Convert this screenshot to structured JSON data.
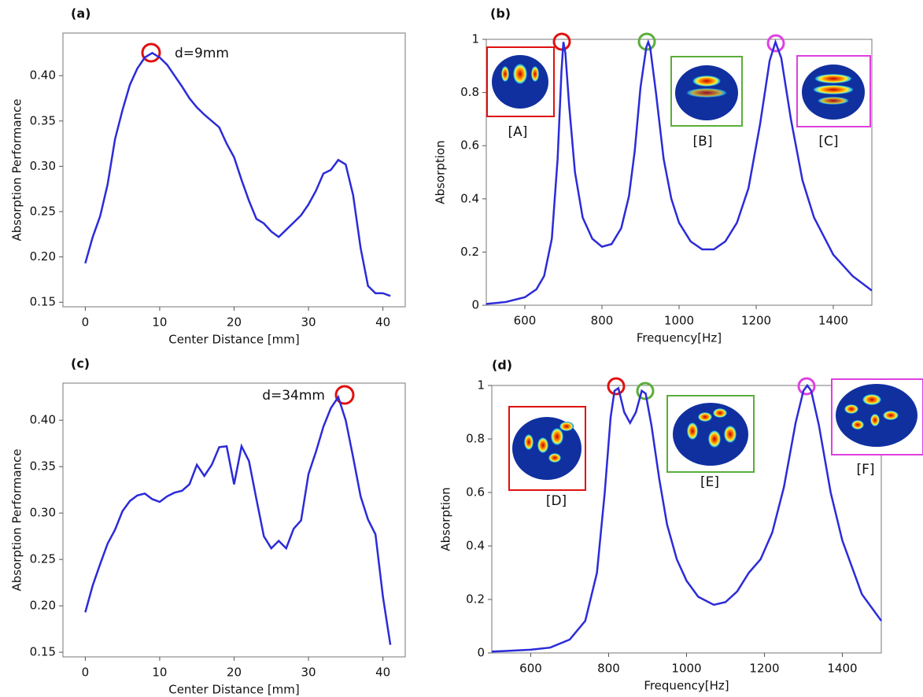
{
  "chart_data": [
    {
      "type": "line",
      "label": "(a)",
      "xlabel": "Center Distance [mm]",
      "ylabel": "Absorption Performance",
      "color": "#2b2bd9",
      "x": [
        0,
        1,
        2,
        3,
        4,
        5,
        6,
        7,
        8,
        9,
        10,
        11,
        12,
        13,
        14,
        15,
        16,
        17,
        18,
        19,
        20,
        21,
        22,
        23,
        24,
        25,
        26,
        27,
        28,
        29,
        30,
        31,
        32,
        33,
        34,
        35,
        36,
        37,
        38,
        39,
        40,
        41
      ],
      "values": [
        0.193,
        0.222,
        0.245,
        0.28,
        0.33,
        0.362,
        0.39,
        0.408,
        0.42,
        0.425,
        0.42,
        0.412,
        0.4,
        0.388,
        0.375,
        0.365,
        0.357,
        0.35,
        0.343,
        0.325,
        0.31,
        0.285,
        0.262,
        0.242,
        0.237,
        0.228,
        0.222,
        0.23,
        0.238,
        0.246,
        0.258,
        0.273,
        0.292,
        0.296,
        0.307,
        0.302,
        0.268,
        0.21,
        0.168,
        0.16,
        0.16,
        0.157
      ],
      "xlim": [
        -3,
        43
      ],
      "ylim": [
        0.145,
        0.447
      ],
      "xticks": [
        0,
        10,
        20,
        30,
        40
      ],
      "yticks": [
        0.15,
        {
          "value": 0.2,
          "label": "0.20"
        },
        0.25,
        {
          "value": 0.3,
          "label": "0.30"
        },
        0.35,
        {
          "value": 0.4,
          "label": "0.40"
        }
      ],
      "annotations": [
        "d=9mm"
      ]
    },
    {
      "type": "line",
      "label": "(b)",
      "xlabel": "Frequency[Hz]",
      "ylabel": "Absorption",
      "color": "#2b2bd9",
      "x": [
        500,
        550,
        600,
        630,
        650,
        670,
        685,
        695,
        700,
        705,
        715,
        730,
        750,
        775,
        800,
        825,
        850,
        870,
        885,
        900,
        915,
        920,
        925,
        940,
        960,
        980,
        1000,
        1030,
        1060,
        1090,
        1120,
        1150,
        1180,
        1210,
        1235,
        1250,
        1265,
        1290,
        1320,
        1350,
        1400,
        1450,
        1500
      ],
      "values": [
        0.005,
        0.012,
        0.03,
        0.06,
        0.11,
        0.25,
        0.55,
        0.88,
        0.99,
        0.95,
        0.75,
        0.5,
        0.33,
        0.25,
        0.22,
        0.23,
        0.29,
        0.41,
        0.58,
        0.82,
        0.97,
        0.99,
        0.97,
        0.8,
        0.55,
        0.4,
        0.31,
        0.24,
        0.21,
        0.21,
        0.24,
        0.31,
        0.44,
        0.68,
        0.92,
        0.99,
        0.93,
        0.7,
        0.47,
        0.33,
        0.19,
        0.11,
        0.055
      ],
      "xlim": [
        500,
        1500
      ],
      "ylim": [
        0,
        1
      ],
      "xticks": [
        600,
        800,
        1000,
        1200,
        1400
      ],
      "yticks": [
        0,
        0.2,
        0.4,
        0.6,
        0.8,
        1
      ],
      "annotations": [
        "[A]",
        "[B]",
        "[C]"
      ]
    },
    {
      "type": "line",
      "label": "(c)",
      "xlabel": "Center Distance [mm]",
      "ylabel": "Absorption Performance",
      "color": "#2b2bd9",
      "x": [
        0,
        1,
        2,
        3,
        4,
        5,
        6,
        7,
        8,
        9,
        10,
        11,
        12,
        13,
        14,
        15,
        16,
        17,
        18,
        19,
        20,
        21,
        22,
        23,
        24,
        25,
        26,
        27,
        28,
        29,
        30,
        31,
        32,
        33,
        34,
        35,
        36,
        37,
        38,
        39,
        40,
        41
      ],
      "values": [
        0.193,
        0.222,
        0.245,
        0.267,
        0.282,
        0.302,
        0.313,
        0.319,
        0.321,
        0.315,
        0.312,
        0.318,
        0.322,
        0.324,
        0.331,
        0.352,
        0.34,
        0.352,
        0.371,
        0.372,
        0.331,
        0.372,
        0.356,
        0.315,
        0.275,
        0.262,
        0.27,
        0.262,
        0.283,
        0.292,
        0.342,
        0.366,
        0.393,
        0.413,
        0.425,
        0.4,
        0.36,
        0.318,
        0.293,
        0.277,
        0.21,
        0.158
      ],
      "xlim": [
        -3,
        43
      ],
      "ylim": [
        0.145,
        0.44
      ],
      "xticks": [
        0,
        10,
        20,
        30,
        40
      ],
      "yticks": [
        0.15,
        {
          "value": 0.2,
          "label": "0.20"
        },
        0.25,
        {
          "value": 0.3,
          "label": "0.30"
        },
        0.35,
        {
          "value": 0.4,
          "label": "0.40"
        }
      ],
      "annotations": [
        "d=34mm"
      ]
    },
    {
      "type": "line",
      "label": "(d)",
      "xlabel": "Frequency[Hz]",
      "ylabel": "Absorption",
      "color": "#2b2bd9",
      "x": [
        500,
        600,
        650,
        700,
        740,
        770,
        790,
        805,
        815,
        825,
        840,
        855,
        870,
        885,
        895,
        910,
        930,
        950,
        975,
        1000,
        1030,
        1070,
        1100,
        1130,
        1160,
        1190,
        1220,
        1250,
        1280,
        1300,
        1310,
        1320,
        1340,
        1370,
        1400,
        1450,
        1500
      ],
      "values": [
        0.005,
        0.012,
        0.02,
        0.05,
        0.12,
        0.3,
        0.6,
        0.88,
        0.98,
        0.99,
        0.9,
        0.86,
        0.9,
        0.98,
        0.97,
        0.85,
        0.65,
        0.48,
        0.35,
        0.27,
        0.21,
        0.18,
        0.19,
        0.23,
        0.3,
        0.35,
        0.45,
        0.62,
        0.86,
        0.98,
        1.0,
        0.98,
        0.85,
        0.6,
        0.42,
        0.22,
        0.12
      ],
      "xlim": [
        500,
        1500
      ],
      "ylim": [
        0,
        1
      ],
      "xticks": [
        600,
        800,
        1000,
        1200,
        1400
      ],
      "yticks": [
        0,
        0.2,
        0.4,
        0.6,
        0.8,
        1
      ],
      "annotations": [
        "[D]",
        "[E]",
        "[F]"
      ]
    }
  ]
}
